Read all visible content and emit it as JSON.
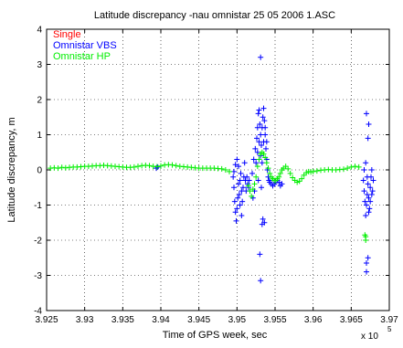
{
  "chart_data": {
    "type": "scatter",
    "title": "Latitude discrepancy -nau omnistar 25 05 2006 1.ASC",
    "xlabel": "Time of GPS week, sec",
    "ylabel": "Latitude discrepancy, m",
    "x_exponent_label": "x 10",
    "x_exponent": "5",
    "xlim": [
      3.925,
      3.97
    ],
    "ylim": [
      -4,
      4
    ],
    "x_ticks": [
      3.925,
      3.93,
      3.935,
      3.94,
      3.945,
      3.95,
      3.955,
      3.96,
      3.965,
      3.97
    ],
    "x_tick_labels": [
      "3.925",
      "3.93",
      "3.935",
      "3.94",
      "3.945",
      "3.95",
      "3.955",
      "3.96",
      "3.965",
      "3.97"
    ],
    "y_ticks": [
      -4,
      -3,
      -2,
      -1,
      0,
      1,
      2,
      3,
      4
    ],
    "y_tick_labels": [
      "-4",
      "-3",
      "-2",
      "-1",
      "0",
      "1",
      "2",
      "3",
      "4"
    ],
    "grid": true,
    "legend_placement": "top-left",
    "series": [
      {
        "name": "Single",
        "color": "#ff0000",
        "marker": "plus",
        "points": []
      },
      {
        "name": "Omnistar VBS",
        "color": "#0000ff",
        "marker": "plus",
        "points": [
          [
            3.9394,
            0.05
          ],
          [
            3.9396,
            0.08
          ],
          [
            3.9495,
            -0.2
          ],
          [
            3.9496,
            -0.5
          ],
          [
            3.9497,
            -0.9
          ],
          [
            3.9498,
            -1.2
          ],
          [
            3.9499,
            -1.45
          ],
          [
            3.95,
            -1.1
          ],
          [
            3.9501,
            -0.8
          ],
          [
            3.9502,
            -0.4
          ],
          [
            3.9503,
            -0.7
          ],
          [
            3.9504,
            -0.3
          ],
          [
            3.9505,
            -0.1
          ],
          [
            3.9506,
            -0.6
          ],
          [
            3.9507,
            -0.9
          ],
          [
            3.9508,
            -0.5
          ],
          [
            3.9509,
            -0.2
          ],
          [
            3.951,
            0.2
          ],
          [
            3.9511,
            -0.3
          ],
          [
            3.9512,
            -0.6
          ],
          [
            3.9496,
            -0.05
          ],
          [
            3.9498,
            0.15
          ],
          [
            3.95,
            0.3
          ],
          [
            3.9502,
            0.1
          ],
          [
            3.9504,
            -1.0
          ],
          [
            3.9506,
            -1.3
          ],
          [
            3.9513,
            -0.2
          ],
          [
            3.9514,
            -0.4
          ],
          [
            3.9515,
            -0.5
          ],
          [
            3.9516,
            -0.3
          ],
          [
            3.952,
            -0.1
          ],
          [
            3.9522,
            0.3
          ],
          [
            3.9524,
            0.6
          ],
          [
            3.9526,
            0.9
          ],
          [
            3.9527,
            1.2
          ],
          [
            3.9528,
            1.6
          ],
          [
            3.9529,
            1.7
          ],
          [
            3.953,
            1.3
          ],
          [
            3.9531,
            1.0
          ],
          [
            3.9532,
            0.7
          ],
          [
            3.9533,
            1.2
          ],
          [
            3.9534,
            1.5
          ],
          [
            3.9535,
            1.75
          ],
          [
            3.9536,
            1.4
          ],
          [
            3.9537,
            1.0
          ],
          [
            3.9538,
            0.6
          ],
          [
            3.9539,
            0.3
          ],
          [
            3.954,
            0.0
          ],
          [
            3.9541,
            -0.2
          ],
          [
            3.9542,
            -0.3
          ],
          [
            3.9525,
            0.2
          ],
          [
            3.9527,
            0.5
          ],
          [
            3.9529,
            0.8
          ],
          [
            3.9531,
            0.4
          ],
          [
            3.9533,
            0.2
          ],
          [
            3.9535,
            0.8
          ],
          [
            3.9537,
            1.2
          ],
          [
            3.9539,
            0.8
          ],
          [
            3.9531,
            3.2
          ],
          [
            3.953,
            -2.4
          ],
          [
            3.9531,
            -3.15
          ],
          [
            3.9533,
            -1.55
          ],
          [
            3.9534,
            -1.4
          ],
          [
            3.9536,
            -1.5
          ],
          [
            3.9521,
            -0.8
          ],
          [
            3.9523,
            -0.6
          ],
          [
            3.9528,
            -0.3
          ],
          [
            3.9532,
            -0.5
          ],
          [
            3.9543,
            -0.35
          ],
          [
            3.9545,
            -0.4
          ],
          [
            3.9547,
            -0.45
          ],
          [
            3.9549,
            -0.4
          ],
          [
            3.9551,
            -0.35
          ],
          [
            3.9553,
            -0.3
          ],
          [
            3.9555,
            -0.35
          ],
          [
            3.9557,
            -0.45
          ],
          [
            3.9559,
            -0.4
          ],
          [
            3.9666,
            -0.3
          ],
          [
            3.9667,
            -0.6
          ],
          [
            3.9668,
            -0.9
          ],
          [
            3.9669,
            -1.3
          ],
          [
            3.967,
            -1.0
          ],
          [
            3.9671,
            -0.7
          ],
          [
            3.9672,
            -0.4
          ],
          [
            3.9673,
            -0.8
          ],
          [
            3.9674,
            -1.1
          ],
          [
            3.9675,
            -0.5
          ],
          [
            3.9676,
            -0.2
          ],
          [
            3.9677,
            0.0
          ],
          [
            3.9678,
            -0.6
          ],
          [
            3.9679,
            -0.3
          ],
          [
            3.9667,
            0.0
          ],
          [
            3.9669,
            0.2
          ],
          [
            3.9671,
            -0.2
          ],
          [
            3.9673,
            -1.2
          ],
          [
            3.9675,
            -0.9
          ],
          [
            3.9677,
            -0.7
          ],
          [
            3.967,
            1.6
          ],
          [
            3.9673,
            1.3
          ],
          [
            3.9672,
            0.9
          ],
          [
            3.967,
            -2.65
          ],
          [
            3.967,
            -2.9
          ],
          [
            3.9672,
            -2.5
          ]
        ]
      },
      {
        "name": "Omnistar HP",
        "color": "#00ee00",
        "marker": "plus",
        "points": [
          [
            3.9255,
            0.05
          ],
          [
            3.926,
            0.06
          ],
          [
            3.9265,
            0.05
          ],
          [
            3.927,
            0.07
          ],
          [
            3.9275,
            0.06
          ],
          [
            3.928,
            0.07
          ],
          [
            3.9285,
            0.08
          ],
          [
            3.929,
            0.08
          ],
          [
            3.9295,
            0.09
          ],
          [
            3.93,
            0.1
          ],
          [
            3.9305,
            0.1
          ],
          [
            3.931,
            0.11
          ],
          [
            3.9315,
            0.12
          ],
          [
            3.932,
            0.12
          ],
          [
            3.9325,
            0.13
          ],
          [
            3.933,
            0.12
          ],
          [
            3.9335,
            0.11
          ],
          [
            3.934,
            0.1
          ],
          [
            3.9345,
            0.09
          ],
          [
            3.935,
            0.08
          ],
          [
            3.9355,
            0.07
          ],
          [
            3.936,
            0.07
          ],
          [
            3.9365,
            0.08
          ],
          [
            3.937,
            0.1
          ],
          [
            3.9375,
            0.12
          ],
          [
            3.938,
            0.13
          ],
          [
            3.9385,
            0.12
          ],
          [
            3.939,
            0.1
          ],
          [
            3.9395,
            0.09
          ],
          [
            3.94,
            0.11
          ],
          [
            3.9405,
            0.14
          ],
          [
            3.941,
            0.15
          ],
          [
            3.9415,
            0.14
          ],
          [
            3.942,
            0.12
          ],
          [
            3.9425,
            0.1
          ],
          [
            3.943,
            0.09
          ],
          [
            3.9435,
            0.08
          ],
          [
            3.944,
            0.07
          ],
          [
            3.9445,
            0.06
          ],
          [
            3.945,
            0.05
          ],
          [
            3.9455,
            0.05
          ],
          [
            3.946,
            0.05
          ],
          [
            3.9465,
            0.05
          ],
          [
            3.947,
            0.05
          ],
          [
            3.9475,
            0.04
          ],
          [
            3.948,
            0.03
          ],
          [
            3.9485,
            0.0
          ],
          [
            3.949,
            -0.05
          ],
          [
            3.9515,
            -0.45
          ],
          [
            3.9517,
            -0.6
          ],
          [
            3.9519,
            -0.75
          ],
          [
            3.9521,
            -0.55
          ],
          [
            3.9523,
            -0.4
          ],
          [
            3.9525,
            -0.2
          ],
          [
            3.9527,
            0.1
          ],
          [
            3.9529,
            0.3
          ],
          [
            3.9531,
            0.45
          ],
          [
            3.9533,
            0.5
          ],
          [
            3.9535,
            0.45
          ],
          [
            3.9537,
            0.35
          ],
          [
            3.9539,
            0.2
          ],
          [
            3.9541,
            0.05
          ],
          [
            3.9543,
            -0.1
          ],
          [
            3.9545,
            -0.2
          ],
          [
            3.9547,
            -0.25
          ],
          [
            3.9549,
            -0.3
          ],
          [
            3.9551,
            -0.3
          ],
          [
            3.9553,
            -0.25
          ],
          [
            3.9555,
            -0.2
          ],
          [
            3.9557,
            -0.1
          ],
          [
            3.9559,
            -0.0
          ],
          [
            3.9561,
            0.05
          ],
          [
            3.9564,
            0.1
          ],
          [
            3.9567,
            0.03
          ],
          [
            3.957,
            -0.1
          ],
          [
            3.9573,
            -0.22
          ],
          [
            3.9576,
            -0.3
          ],
          [
            3.9579,
            -0.35
          ],
          [
            3.9582,
            -0.32
          ],
          [
            3.9585,
            -0.25
          ],
          [
            3.9588,
            -0.15
          ],
          [
            3.9591,
            -0.08
          ],
          [
            3.9594,
            -0.05
          ],
          [
            3.9597,
            -0.06
          ],
          [
            3.96,
            -0.05
          ],
          [
            3.9605,
            -0.03
          ],
          [
            3.961,
            -0.01
          ],
          [
            3.9615,
            0.0
          ],
          [
            3.962,
            0.01
          ],
          [
            3.9625,
            0.0
          ],
          [
            3.963,
            0.0
          ],
          [
            3.9635,
            0.01
          ],
          [
            3.964,
            0.02
          ],
          [
            3.9645,
            0.05
          ],
          [
            3.965,
            0.08
          ],
          [
            3.9655,
            0.1
          ],
          [
            3.966,
            0.08
          ],
          [
            3.9668,
            -1.85
          ],
          [
            3.9669,
            -1.9
          ],
          [
            3.9669,
            -2.0
          ]
        ]
      }
    ]
  }
}
